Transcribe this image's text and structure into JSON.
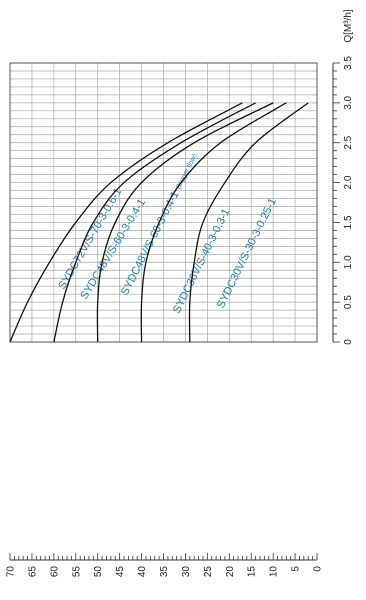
{
  "chart_data": {
    "type": "line",
    "title": "",
    "x_axis": {
      "label": "Q[M³/h]",
      "range": [
        0,
        3.5
      ],
      "tick_labels": [
        "0",
        "0.5",
        "1.0",
        "1.5",
        "2.0",
        "2.5",
        "3.0",
        "3.5"
      ]
    },
    "y_axis": {
      "label": "",
      "range": [
        0,
        70
      ],
      "tick_labels": [
        "70",
        "65",
        "60",
        "55",
        "50",
        "45",
        "40",
        "35",
        "30",
        "25",
        "20",
        "15",
        "10",
        "5",
        "0"
      ]
    },
    "grid": true,
    "orientation": "rotated 90° (flow axis runs top-to-bottom on the page)",
    "accent_color": "#1e7fb0",
    "series": [
      {
        "name": "SYDC72V/S-70-3-0.6-1",
        "points": [
          [
            0,
            70
          ],
          [
            0.5,
            66
          ],
          [
            1.0,
            61
          ],
          [
            1.5,
            55
          ],
          [
            2.0,
            47
          ],
          [
            2.5,
            34
          ],
          [
            3.0,
            17
          ]
        ]
      },
      {
        "name": "SYDC48V/S-60-3-0.4-1",
        "points": [
          [
            0,
            60
          ],
          [
            0.5,
            58
          ],
          [
            1.0,
            55
          ],
          [
            1.5,
            51
          ],
          [
            2.0,
            44
          ],
          [
            2.5,
            31
          ],
          [
            3.0,
            14
          ]
        ]
      },
      {
        "name": "SYDC48V/S-60-3-0.4-1",
        "sublabel": "(bigger flow)",
        "points": [
          [
            0,
            50
          ],
          [
            0.5,
            50
          ],
          [
            1.0,
            49
          ],
          [
            1.5,
            46
          ],
          [
            2.0,
            40
          ],
          [
            2.5,
            28
          ],
          [
            3.0,
            10
          ]
        ]
      },
      {
        "name": "SYDC36V/S-40-3-0.3-1",
        "points": [
          [
            0,
            40
          ],
          [
            0.5,
            40
          ],
          [
            1.0,
            39
          ],
          [
            1.5,
            36
          ],
          [
            2.0,
            31
          ],
          [
            2.5,
            22
          ],
          [
            3.0,
            7
          ]
        ]
      },
      {
        "name": "SYDC30V/S-30-3-0.25-1",
        "points": [
          [
            0,
            29
          ],
          [
            0.5,
            29
          ],
          [
            1.0,
            28
          ],
          [
            1.5,
            26
          ],
          [
            2.0,
            21
          ],
          [
            2.5,
            14
          ],
          [
            3.0,
            2
          ]
        ]
      }
    ]
  }
}
